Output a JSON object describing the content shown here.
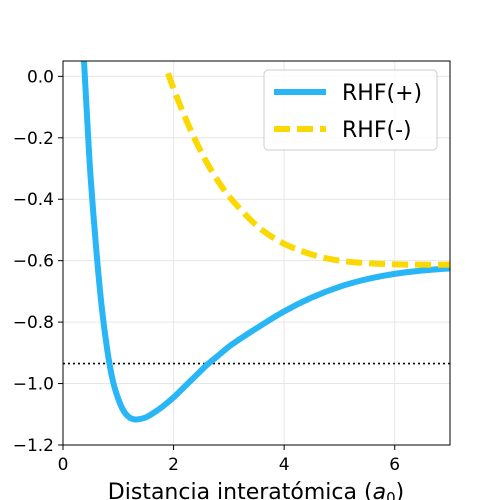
{
  "chart_data": {
    "type": "line",
    "title": "",
    "xlabel": "Distancia interatómica (",
    "xlabel_symbol": "a",
    "xlabel_subscript": "0",
    "xlabel_suffix": ")",
    "ylabel": "",
    "xlim": [
      0,
      7
    ],
    "ylim": [
      -1.2,
      0.05
    ],
    "xticks": [
      0,
      2,
      4,
      6
    ],
    "xtick_labels": [
      "0",
      "2",
      "4",
      "6"
    ],
    "yticks": [
      0.0,
      -0.2,
      -0.4,
      -0.6,
      -0.8,
      -1.0,
      -1.2
    ],
    "ytick_labels": [
      "0.0",
      "−0.2",
      "−0.4",
      "−0.6",
      "−0.8",
      "−1.0",
      "−1.2"
    ],
    "grid": true,
    "legend_position": "top-right",
    "reference_line": {
      "y": -0.935,
      "style": "dotted",
      "color": "#000000"
    },
    "series": [
      {
        "name": "RHF(+)",
        "style": "solid",
        "color": "#29b6f6",
        "x": [
          0.38,
          0.45,
          0.5,
          0.6,
          0.7,
          0.8,
          0.9,
          1.0,
          1.1,
          1.2,
          1.3,
          1.4,
          1.5,
          1.6,
          1.8,
          2.0,
          2.2,
          2.4,
          2.6,
          2.8,
          3.0,
          3.2,
          3.5,
          4.0,
          4.5,
          5.0,
          5.5,
          6.0,
          6.5,
          7.0
        ],
        "y": [
          0.05,
          -0.18,
          -0.33,
          -0.56,
          -0.75,
          -0.89,
          -0.99,
          -1.05,
          -1.09,
          -1.11,
          -1.117,
          -1.115,
          -1.11,
          -1.1,
          -1.075,
          -1.045,
          -1.01,
          -0.975,
          -0.94,
          -0.91,
          -0.88,
          -0.855,
          -0.82,
          -0.765,
          -0.72,
          -0.685,
          -0.66,
          -0.643,
          -0.632,
          -0.625
        ]
      },
      {
        "name": "RHF(-)",
        "style": "dashed",
        "color": "#fbd800",
        "x": [
          1.9,
          2.0,
          2.2,
          2.4,
          2.6,
          2.8,
          3.0,
          3.3,
          3.6,
          4.0,
          4.5,
          5.0,
          5.5,
          6.0,
          6.5,
          7.0
        ],
        "y": [
          0.01,
          -0.04,
          -0.13,
          -0.21,
          -0.28,
          -0.34,
          -0.39,
          -0.45,
          -0.5,
          -0.545,
          -0.58,
          -0.6,
          -0.608,
          -0.612,
          -0.613,
          -0.613
        ]
      }
    ]
  }
}
